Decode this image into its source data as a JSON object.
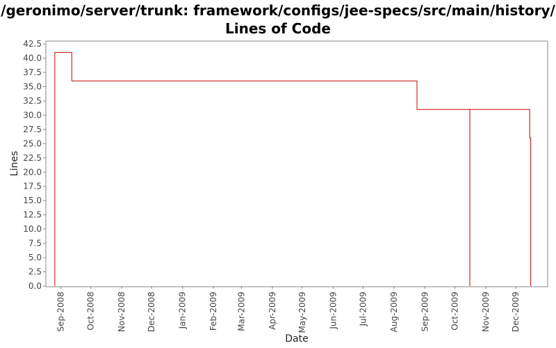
{
  "chart_data": {
    "type": "line",
    "title": [
      "/geronimo/server/trunk: framework/configs/jee-specs/src/main/history/",
      "Lines of Code"
    ],
    "xlabel": "Date",
    "ylabel": "Lines",
    "ylim": [
      0,
      43
    ],
    "yticks": [
      0.0,
      2.5,
      5.0,
      7.5,
      10.0,
      12.5,
      15.0,
      17.5,
      20.0,
      22.5,
      25.0,
      27.5,
      30.0,
      32.5,
      35.0,
      37.5,
      40.0,
      42.5
    ],
    "ytick_labels": [
      "0.0",
      "2.5",
      "5.0",
      "7.5",
      "10.0",
      "12.5",
      "15.0",
      "17.5",
      "20.0",
      "22.5",
      "25.0",
      "27.5",
      "30.0",
      "32.5",
      "35.0",
      "37.5",
      "40.0",
      "42.5"
    ],
    "xlim": [
      "2008-08-17",
      "2010-01-02"
    ],
    "xticks": [
      "2008-09-01",
      "2008-10-01",
      "2008-11-01",
      "2008-12-01",
      "2009-01-01",
      "2009-02-01",
      "2009-03-01",
      "2009-04-01",
      "2009-05-01",
      "2009-06-01",
      "2009-07-01",
      "2009-08-01",
      "2009-09-01",
      "2009-10-01",
      "2009-11-01",
      "2009-12-01"
    ],
    "xtick_labels": [
      "Sep-2008",
      "Oct-2008",
      "Nov-2008",
      "Dec-2008",
      "Jan-2009",
      "Feb-2009",
      "Mar-2009",
      "Apr-2009",
      "May-2009",
      "Jun-2009",
      "Jul-2009",
      "Aug-2009",
      "Sep-2009",
      "Oct-2009",
      "Nov-2009",
      "Dec-2009"
    ],
    "series": [
      {
        "name": "Lines of Code",
        "color": "#cc0000",
        "step": true,
        "points": [
          {
            "date": "2008-08-26",
            "value": 0
          },
          {
            "date": "2008-08-26",
            "value": 41
          },
          {
            "date": "2008-09-12",
            "value": 41
          },
          {
            "date": "2008-09-12",
            "value": 36
          },
          {
            "date": "2009-08-24",
            "value": 36
          },
          {
            "date": "2009-08-24",
            "value": 31
          },
          {
            "date": "2009-10-16",
            "value": 31
          },
          {
            "date": "2009-10-16",
            "value": 0
          },
          {
            "date": "2009-10-16",
            "value": 31
          },
          {
            "date": "2009-12-15",
            "value": 31
          },
          {
            "date": "2009-12-15",
            "value": 26
          },
          {
            "date": "2009-12-16",
            "value": 26
          },
          {
            "date": "2009-12-16",
            "value": 0
          }
        ]
      }
    ]
  },
  "colors": {
    "background": "#ffffff",
    "plot_border": "#888888",
    "axis": "#888888",
    "series": "#cc0000"
  }
}
